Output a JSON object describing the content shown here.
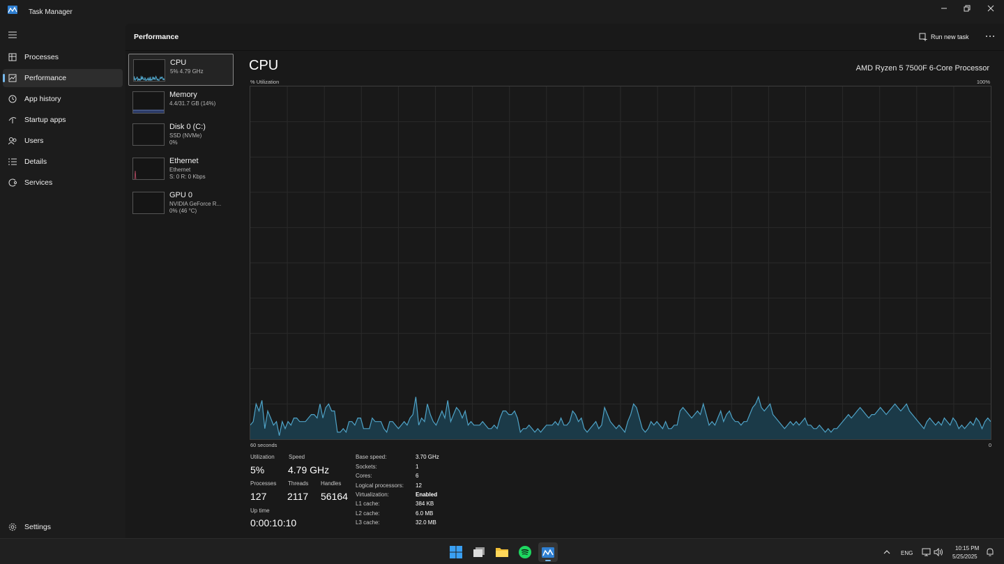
{
  "window": {
    "title": "Task Manager"
  },
  "nav": {
    "items": [
      {
        "label": "Processes",
        "icon": "processes-icon"
      },
      {
        "label": "Performance",
        "icon": "performance-icon",
        "active": true
      },
      {
        "label": "App history",
        "icon": "history-icon"
      },
      {
        "label": "Startup apps",
        "icon": "startup-icon"
      },
      {
        "label": "Users",
        "icon": "users-icon"
      },
      {
        "label": "Details",
        "icon": "details-icon"
      },
      {
        "label": "Services",
        "icon": "services-icon"
      }
    ],
    "settings": "Settings"
  },
  "header": {
    "title": "Performance",
    "run_new_task": "Run new task"
  },
  "devices": [
    {
      "name": "CPU",
      "line1": "5% 4.79 GHz",
      "line2": ""
    },
    {
      "name": "Memory",
      "line1": "4.4/31.7 GB (14%)",
      "line2": ""
    },
    {
      "name": "Disk 0 (C:)",
      "line1": "SSD (NVMe)",
      "line2": "0%"
    },
    {
      "name": "Ethernet",
      "line1": "Ethernet",
      "line2": "S: 0 R: 0 Kbps"
    },
    {
      "name": "GPU 0",
      "line1": "NVIDIA GeForce R...",
      "line2": "0% (46 °C)"
    }
  ],
  "cpu": {
    "title": "CPU",
    "model": "AMD Ryzen 5 7500F 6-Core Processor",
    "util_label": "% Utilization",
    "util_max": "100%",
    "axis_left": "60 seconds",
    "axis_right": "0",
    "graph_color": "#4fa3c7",
    "graph_fill": "#1b3a48",
    "history": [
      4,
      5,
      10,
      8,
      11,
      3,
      8,
      6,
      4,
      5,
      1,
      5,
      3,
      5,
      4,
      6,
      6,
      5,
      5,
      5,
      6,
      7,
      7,
      6,
      10,
      6,
      9,
      10,
      8,
      8,
      2,
      2,
      3,
      2,
      5,
      5,
      4,
      6,
      6,
      3,
      3,
      3,
      6,
      5,
      5,
      5,
      3,
      2,
      5,
      5,
      4,
      3,
      4,
      5,
      4,
      6,
      7,
      12,
      4,
      6,
      5,
      10,
      7,
      5,
      4,
      6,
      8,
      6,
      11,
      5,
      7,
      9,
      8,
      6,
      8,
      4,
      5,
      4,
      4,
      4,
      5,
      4,
      3,
      3,
      4,
      3,
      6,
      8,
      8,
      7,
      7,
      8,
      6,
      2,
      3,
      3,
      4,
      3,
      2,
      3,
      2,
      3,
      4,
      4,
      4,
      5,
      4,
      6,
      4,
      4,
      5,
      8,
      7,
      5,
      6,
      3,
      2,
      3,
      4,
      5,
      3,
      4,
      9,
      7,
      5,
      4,
      3,
      4,
      3,
      2,
      5,
      7,
      10,
      9,
      6,
      3,
      2,
      3,
      5,
      4,
      5,
      4,
      3,
      5,
      3,
      3,
      4,
      4,
      8,
      9,
      8,
      7,
      6,
      7,
      8,
      7,
      10,
      7,
      4,
      5,
      4,
      6,
      8,
      5,
      7,
      8,
      6,
      5,
      5,
      4,
      5,
      5,
      7,
      9,
      10,
      12,
      9,
      8,
      9,
      10,
      7,
      6,
      5,
      4,
      3,
      4,
      5,
      4,
      5,
      4,
      5,
      6,
      4,
      4,
      3,
      3,
      4,
      3,
      2,
      3,
      2,
      3,
      3,
      4,
      5,
      6,
      7,
      6,
      7,
      8,
      9,
      8,
      7,
      6,
      7,
      7,
      8,
      9,
      8,
      7,
      8,
      9,
      10,
      9,
      8,
      9,
      10,
      8,
      7,
      6,
      5,
      4,
      3,
      5,
      6,
      5,
      4,
      5,
      4,
      6,
      5,
      4,
      6,
      5,
      3,
      4,
      3,
      4,
      5,
      4,
      6,
      5,
      3,
      5,
      6,
      5
    ],
    "stats": {
      "utilization_label": "Utilization",
      "utilization": "5%",
      "speed_label": "Speed",
      "speed": "4.79 GHz",
      "processes_label": "Processes",
      "processes": "127",
      "threads_label": "Threads",
      "threads": "2117",
      "handles_label": "Handles",
      "handles": "56164",
      "uptime_label": "Up time",
      "uptime": "0:00:10:10"
    },
    "specs": [
      {
        "label": "Base speed:",
        "value": "3.70 GHz"
      },
      {
        "label": "Sockets:",
        "value": "1"
      },
      {
        "label": "Cores:",
        "value": "6"
      },
      {
        "label": "Logical processors:",
        "value": "12"
      },
      {
        "label": "Virtualization:",
        "value": "Enabled"
      },
      {
        "label": "L1 cache:",
        "value": "384 KB"
      },
      {
        "label": "L2 cache:",
        "value": "6.0 MB"
      },
      {
        "label": "L3 cache:",
        "value": "32.0 MB"
      }
    ]
  },
  "taskbar": {
    "lang": "ENG",
    "time": "10:15 PM",
    "date": "5/25/2025"
  }
}
